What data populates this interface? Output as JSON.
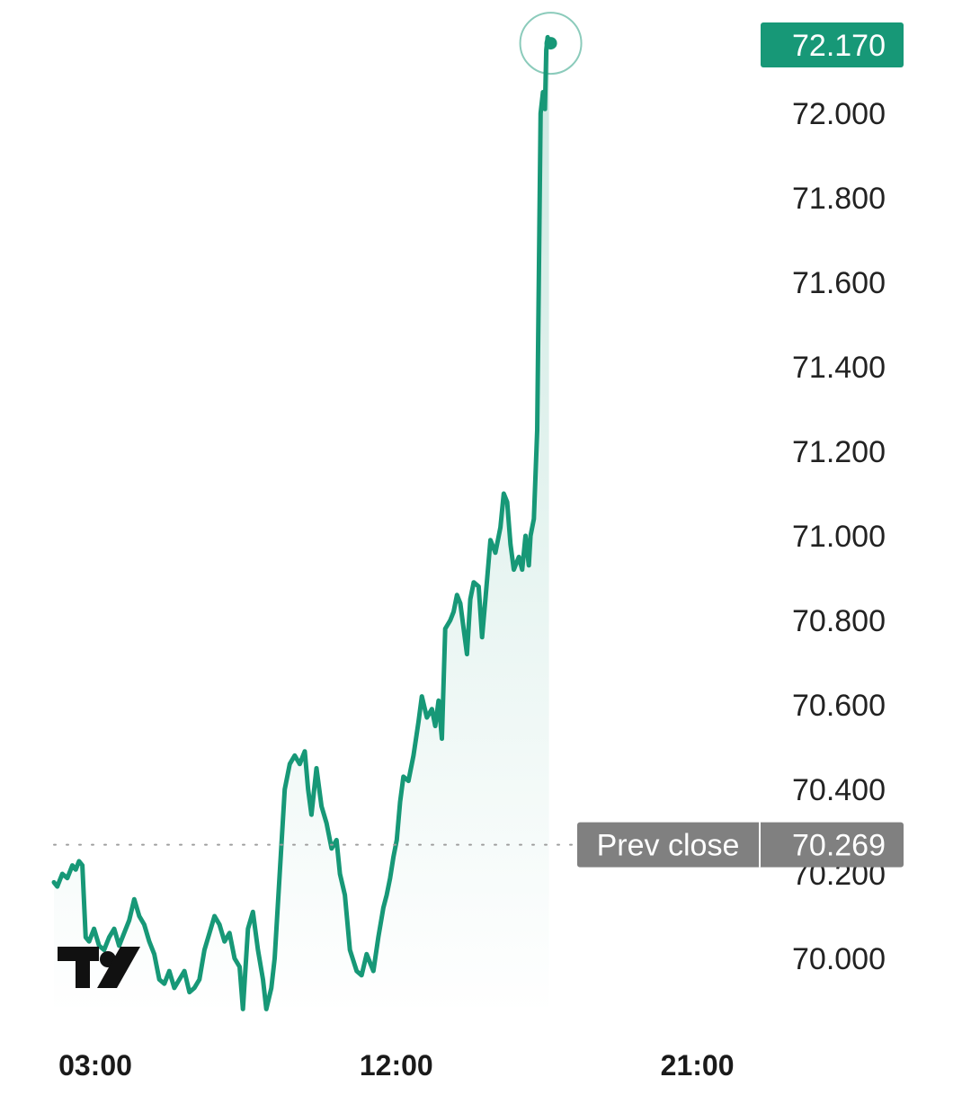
{
  "chart_data": {
    "type": "area",
    "y_ticks": [
      "70.000",
      "70.200",
      "70.400",
      "70.600",
      "70.800",
      "71.000",
      "71.200",
      "71.400",
      "71.600",
      "71.800",
      "72.000"
    ],
    "y_tick_values": [
      70.0,
      70.2,
      70.4,
      70.6,
      70.8,
      71.0,
      71.2,
      71.4,
      71.6,
      71.8,
      72.0
    ],
    "ylim": [
      69.85,
      72.34
    ],
    "x_ticks": [
      "03:00",
      "12:00",
      "21:00"
    ],
    "x_tick_hours": [
      3,
      12,
      21
    ],
    "xlim_hours": [
      3,
      22
    ],
    "last_value_label": "72.170",
    "last_value": 72.17,
    "prev_close": {
      "label": "Prev close",
      "value_label": "70.269",
      "value": 70.269
    },
    "colors": {
      "line": "#179877",
      "badge_green": "#179877",
      "badge_gray": "#808080",
      "prev_close_dots": "#9e9e9e"
    },
    "logo": "tradingview-logo",
    "series": [
      {
        "values": [
          [
            3.0,
            70.18
          ],
          [
            3.1,
            70.17
          ],
          [
            3.25,
            70.2
          ],
          [
            3.4,
            70.19
          ],
          [
            3.55,
            70.22
          ],
          [
            3.65,
            70.21
          ],
          [
            3.75,
            70.23
          ],
          [
            3.85,
            70.22
          ],
          [
            3.95,
            70.05
          ],
          [
            4.05,
            70.04
          ],
          [
            4.2,
            70.07
          ],
          [
            4.35,
            70.03
          ],
          [
            4.5,
            70.02
          ],
          [
            4.65,
            70.05
          ],
          [
            4.8,
            70.07
          ],
          [
            4.95,
            70.03
          ],
          [
            5.1,
            70.06
          ],
          [
            5.25,
            70.09
          ],
          [
            5.4,
            70.14
          ],
          [
            5.55,
            70.1
          ],
          [
            5.7,
            70.08
          ],
          [
            5.85,
            70.04
          ],
          [
            6.0,
            70.01
          ],
          [
            6.15,
            69.95
          ],
          [
            6.3,
            69.94
          ],
          [
            6.45,
            69.97
          ],
          [
            6.6,
            69.93
          ],
          [
            6.75,
            69.95
          ],
          [
            6.9,
            69.97
          ],
          [
            7.05,
            69.92
          ],
          [
            7.2,
            69.93
          ],
          [
            7.35,
            69.95
          ],
          [
            7.5,
            70.02
          ],
          [
            7.65,
            70.06
          ],
          [
            7.8,
            70.1
          ],
          [
            7.95,
            70.08
          ],
          [
            8.1,
            70.04
          ],
          [
            8.25,
            70.06
          ],
          [
            8.4,
            70.0
          ],
          [
            8.55,
            69.98
          ],
          [
            8.65,
            69.88
          ],
          [
            8.8,
            70.07
          ],
          [
            8.95,
            70.11
          ],
          [
            9.1,
            70.02
          ],
          [
            9.25,
            69.95
          ],
          [
            9.35,
            69.88
          ],
          [
            9.5,
            69.93
          ],
          [
            9.6,
            70.0
          ],
          [
            9.75,
            70.2
          ],
          [
            9.9,
            70.4
          ],
          [
            10.05,
            70.46
          ],
          [
            10.2,
            70.48
          ],
          [
            10.35,
            70.46
          ],
          [
            10.5,
            70.49
          ],
          [
            10.6,
            70.4
          ],
          [
            10.7,
            70.34
          ],
          [
            10.85,
            70.45
          ],
          [
            11.0,
            70.36
          ],
          [
            11.15,
            70.32
          ],
          [
            11.3,
            70.26
          ],
          [
            11.45,
            70.28
          ],
          [
            11.55,
            70.2
          ],
          [
            11.7,
            70.15
          ],
          [
            11.85,
            70.02
          ],
          [
            12.05,
            69.97
          ],
          [
            12.2,
            69.96
          ],
          [
            12.35,
            70.01
          ],
          [
            12.55,
            69.97
          ],
          [
            12.7,
            70.05
          ],
          [
            12.85,
            70.12
          ],
          [
            12.95,
            70.15
          ],
          [
            13.05,
            70.19
          ],
          [
            13.15,
            70.24
          ],
          [
            13.25,
            70.28
          ],
          [
            13.35,
            70.37
          ],
          [
            13.45,
            70.43
          ],
          [
            13.6,
            70.42
          ],
          [
            13.75,
            70.48
          ],
          [
            13.9,
            70.56
          ],
          [
            14.0,
            70.62
          ],
          [
            14.15,
            70.57
          ],
          [
            14.3,
            70.59
          ],
          [
            14.4,
            70.55
          ],
          [
            14.5,
            70.61
          ],
          [
            14.6,
            70.52
          ],
          [
            14.7,
            70.78
          ],
          [
            14.85,
            70.8
          ],
          [
            14.95,
            70.82
          ],
          [
            15.05,
            70.86
          ],
          [
            15.15,
            70.84
          ],
          [
            15.25,
            70.78
          ],
          [
            15.35,
            70.72
          ],
          [
            15.45,
            70.85
          ],
          [
            15.55,
            70.89
          ],
          [
            15.7,
            70.88
          ],
          [
            15.8,
            70.76
          ],
          [
            15.9,
            70.85
          ],
          [
            16.05,
            70.99
          ],
          [
            16.2,
            70.96
          ],
          [
            16.35,
            71.02
          ],
          [
            16.45,
            71.1
          ],
          [
            16.55,
            71.08
          ],
          [
            16.65,
            70.98
          ],
          [
            16.75,
            70.92
          ],
          [
            16.9,
            70.95
          ],
          [
            17.0,
            70.92
          ],
          [
            17.1,
            71.0
          ],
          [
            17.2,
            70.93
          ],
          [
            17.25,
            71.0
          ],
          [
            17.35,
            71.04
          ],
          [
            17.45,
            71.25
          ],
          [
            17.55,
            72.0
          ],
          [
            17.62,
            72.05
          ],
          [
            17.68,
            72.01
          ],
          [
            17.72,
            72.15
          ],
          [
            17.76,
            72.18
          ],
          [
            17.8,
            72.17
          ]
        ]
      }
    ]
  }
}
